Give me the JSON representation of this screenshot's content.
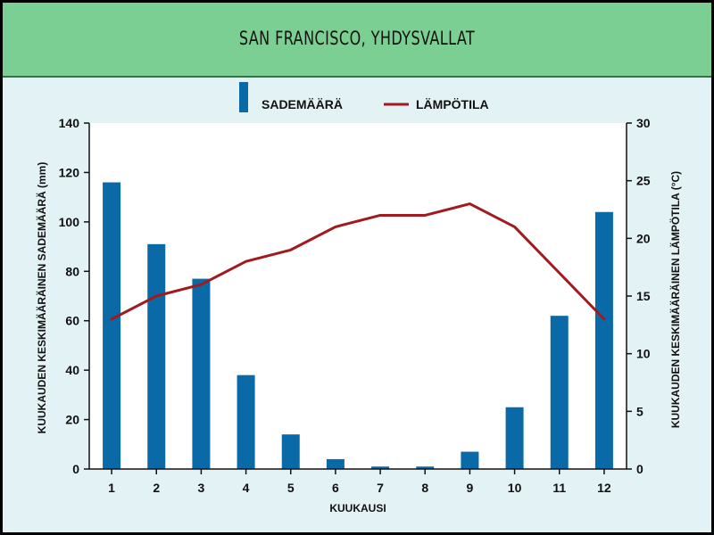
{
  "title": "SAN FRANCISCO, YHDYSVALLAT",
  "chart_data": {
    "type": "bar+line",
    "categories": [
      "1",
      "2",
      "3",
      "4",
      "5",
      "6",
      "7",
      "8",
      "9",
      "10",
      "11",
      "12"
    ],
    "series": [
      {
        "name": "SADEMÄÄRÄ",
        "kind": "bar",
        "axis": "left",
        "color": "#0a6aa8",
        "values": [
          116,
          91,
          77,
          38,
          14,
          4,
          1,
          1,
          7,
          25,
          62,
          104
        ]
      },
      {
        "name": "LÄMPÖTILA",
        "kind": "line",
        "axis": "right",
        "color": "#a11a1f",
        "values": [
          13,
          15,
          16,
          18,
          19,
          21,
          22,
          22,
          23,
          21,
          17,
          13
        ]
      }
    ],
    "xlabel": "KUUKAUSI",
    "ylabel_left": "KUUKAUDEN KESKIMÄÄRÄINEN SADEMÄÄRÄ (mm)",
    "ylabel_right": "KUUKAUDEN KESKIMÄÄRÄINEN LÄMPÖTILA (°C)",
    "ylim_left": [
      0,
      140
    ],
    "yticks_left": [
      0,
      20,
      40,
      60,
      80,
      100,
      120,
      140
    ],
    "ylim_right": [
      0,
      30
    ],
    "yticks_right": [
      0,
      5,
      10,
      15,
      20,
      25,
      30
    ],
    "legend_position": "top-center",
    "grid": false
  }
}
